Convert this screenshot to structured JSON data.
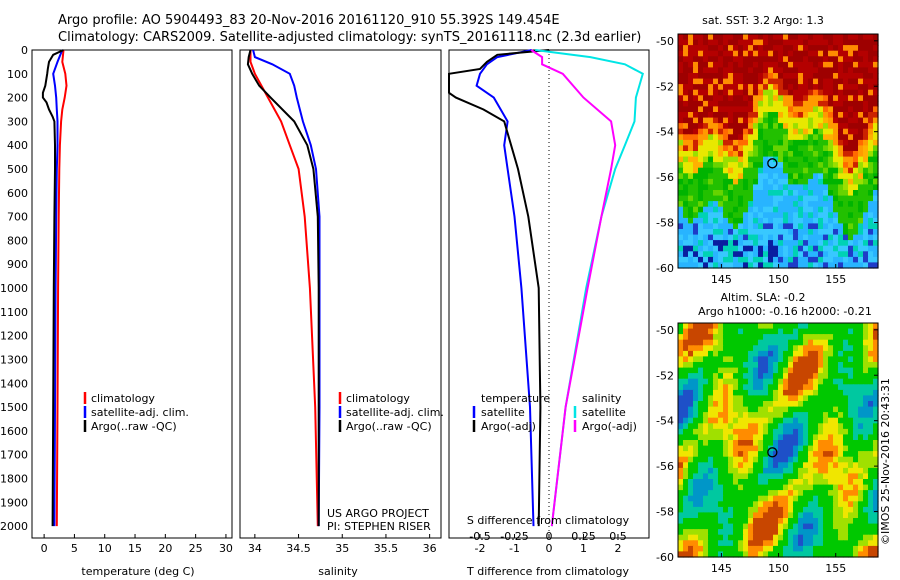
{
  "header": {
    "line1": "Argo profile: AO 5904493_83 20-Nov-2016 20161120_910 55.392S 149.454E",
    "line2": "Climatology: CARS2009. Satellite-adjusted climatology: synTS_20161118.nc (2.3d earlier)"
  },
  "colors": {
    "climatology": "#ff0000",
    "satellite": "#0000ff",
    "argo": "#000000",
    "satellite_sal": "#00e5e5",
    "argo_sal": "#ff00ff"
  },
  "depth_axis": {
    "ticks": [
      "0",
      "100",
      "200",
      "300",
      "400",
      "500",
      "600",
      "700",
      "800",
      "900",
      "1000",
      "1100",
      "1200",
      "1300",
      "1400",
      "1500",
      "1600",
      "1700",
      "1800",
      "1900",
      "2000"
    ]
  },
  "chart_data": [
    {
      "type": "line",
      "name": "temperature-panel",
      "xlabel": "temperature (deg C)",
      "ylabel": "",
      "xticks": [
        "0",
        "5",
        "10",
        "15",
        "20",
        "25",
        "30"
      ],
      "xlim": [
        -2,
        31
      ],
      "ylim": [
        2050,
        0
      ],
      "legend": [
        "climatology",
        "satellite-adj. clim.",
        "Argo(..raw -QC)"
      ],
      "series": [
        {
          "key": "clim",
          "depth": [
            0,
            50,
            100,
            150,
            200,
            250,
            300,
            400,
            500,
            700,
            1000,
            1500,
            2000
          ],
          "values": [
            3.2,
            3.0,
            3.5,
            3.7,
            3.4,
            3.0,
            2.8,
            2.6,
            2.5,
            2.4,
            2.3,
            2.2,
            2.1
          ]
        },
        {
          "key": "sat",
          "depth": [
            0,
            50,
            100,
            150,
            200,
            250,
            300,
            400,
            500,
            700,
            1000,
            1500,
            2000
          ],
          "values": [
            3.0,
            2.2,
            1.5,
            1.8,
            2.0,
            2.1,
            2.2,
            2.2,
            2.1,
            2.0,
            1.9,
            1.8,
            1.7
          ]
        },
        {
          "key": "argo",
          "depth": [
            0,
            20,
            50,
            80,
            100,
            150,
            180,
            200,
            220,
            250,
            280,
            300,
            400,
            500,
            700,
            1000,
            1500,
            2000
          ],
          "values": [
            3.2,
            1.5,
            0.8,
            0.6,
            0.5,
            0.2,
            -0.2,
            -0.2,
            0.4,
            0.8,
            1.4,
            1.7,
            1.8,
            1.8,
            1.7,
            1.6,
            1.5,
            1.4
          ]
        }
      ]
    },
    {
      "type": "line",
      "name": "salinity-panel",
      "xlabel": "salinity",
      "ylabel": "",
      "xticks": [
        "34",
        "34.5",
        "35",
        "35.5",
        "36"
      ],
      "xlim": [
        33.83,
        36.13
      ],
      "ylim": [
        2050,
        0
      ],
      "legend": [
        "climatology",
        "satellite-adj. clim.",
        "Argo(..raw -QC)"
      ],
      "series": [
        {
          "key": "clim",
          "depth": [
            0,
            50,
            100,
            200,
            300,
            400,
            500,
            700,
            1000,
            1500,
            2000
          ],
          "values": [
            33.95,
            33.95,
            34.0,
            34.15,
            34.3,
            34.4,
            34.5,
            34.57,
            34.63,
            34.69,
            34.72
          ]
        },
        {
          "key": "sat",
          "depth": [
            0,
            30,
            60,
            100,
            150,
            200,
            300,
            400,
            500,
            700,
            1000,
            1500,
            2000
          ],
          "values": [
            33.98,
            34.0,
            34.2,
            34.4,
            34.45,
            34.48,
            34.55,
            34.64,
            34.7,
            34.74,
            34.74,
            34.74,
            34.73
          ]
        },
        {
          "key": "argo",
          "depth": [
            0,
            30,
            60,
            100,
            150,
            200,
            300,
            400,
            500,
            700,
            1000,
            1500,
            2000
          ],
          "values": [
            33.95,
            33.93,
            33.92,
            33.97,
            34.05,
            34.18,
            34.45,
            34.6,
            34.67,
            34.72,
            34.73,
            34.73,
            34.73
          ]
        }
      ]
    },
    {
      "type": "line",
      "name": "difference-panel",
      "xlabel": "T difference from climatology",
      "ylabel": "",
      "secondary_xlabel": "S difference from climatology",
      "xticks": [
        "-2",
        "-1",
        "0",
        "1",
        "2"
      ],
      "secondary_xticks": [
        "-0.5",
        "-0.25",
        "0",
        "0.25",
        "0.5"
      ],
      "xlim": [
        -2.9,
        2.9
      ],
      "ylim": [
        2050,
        0
      ],
      "legend_temperature_title": "temperature",
      "legend_salinity_title": "salinity",
      "legend": [
        "satellite",
        "Argo(-adj)",
        "satellite",
        "Argo(-adj)"
      ],
      "series": [
        {
          "key": "t_sat",
          "depth": [
            0,
            30,
            60,
            100,
            150,
            200,
            300,
            400,
            500,
            700,
            1000,
            1500,
            2000
          ],
          "values": [
            -0.5,
            -1.5,
            -1.8,
            -2.0,
            -2.1,
            -1.6,
            -1.2,
            -1.3,
            -1.2,
            -1.0,
            -0.8,
            -0.55,
            -0.45
          ]
        },
        {
          "key": "t_argo",
          "depth": [
            0,
            20,
            50,
            80,
            100,
            150,
            180,
            200,
            250,
            300,
            400,
            500,
            700,
            1000,
            1500,
            2000
          ],
          "values": [
            0,
            -1.5,
            -1.8,
            -2.0,
            -2.9,
            -2.9,
            -2.9,
            -2.7,
            -1.9,
            -1.3,
            -1.1,
            -0.9,
            -0.6,
            -0.3,
            -0.25,
            -0.3
          ]
        },
        {
          "key": "s_sat",
          "depth": [
            0,
            30,
            60,
            100,
            200,
            300,
            400,
            500,
            700,
            1000,
            1500,
            2000
          ],
          "values": [
            -0.1,
            0.3,
            0.55,
            0.68,
            0.63,
            0.62,
            0.55,
            0.48,
            0.38,
            0.27,
            0.12,
            0.02
          ]
        },
        {
          "key": "s_argo",
          "depth": [
            0,
            30,
            60,
            100,
            200,
            300,
            400,
            500,
            700,
            1000,
            1500,
            2000
          ],
          "values": [
            -0.13,
            -0.05,
            -0.05,
            0.1,
            0.25,
            0.45,
            0.48,
            0.45,
            0.38,
            0.28,
            0.12,
            0.02
          ]
        }
      ]
    },
    {
      "type": "heatmap",
      "name": "sst-map",
      "title": "sat. SST: 3.2  Argo: 1.3",
      "xticks": [
        "145",
        "150",
        "155"
      ],
      "yticks": [
        "-50",
        "-52",
        "-54",
        "-56",
        "-58",
        "-60"
      ],
      "xlim": [
        141.2,
        158.7
      ],
      "ylim": [
        -60,
        -49.7
      ],
      "marker": [
        149.454,
        -55.392
      ]
    },
    {
      "type": "heatmap",
      "name": "sla-map",
      "title_line1": "Altim. SLA: -0.2",
      "title_line2": "Argo h1000: -0.16  h2000: -0.21",
      "xticks": [
        "145",
        "150",
        "155"
      ],
      "yticks": [
        "-50",
        "-52",
        "-54",
        "-56",
        "-58",
        "-60"
      ],
      "xlim": [
        141.2,
        158.7
      ],
      "ylim": [
        -60,
        -49.7
      ],
      "marker": [
        149.454,
        -55.392
      ]
    }
  ],
  "footer": {
    "project": "US ARGO PROJECT",
    "pi": "PI: STEPHEN RISER",
    "stamp": "©IMOS 25-Nov-2016 20:43:31"
  }
}
